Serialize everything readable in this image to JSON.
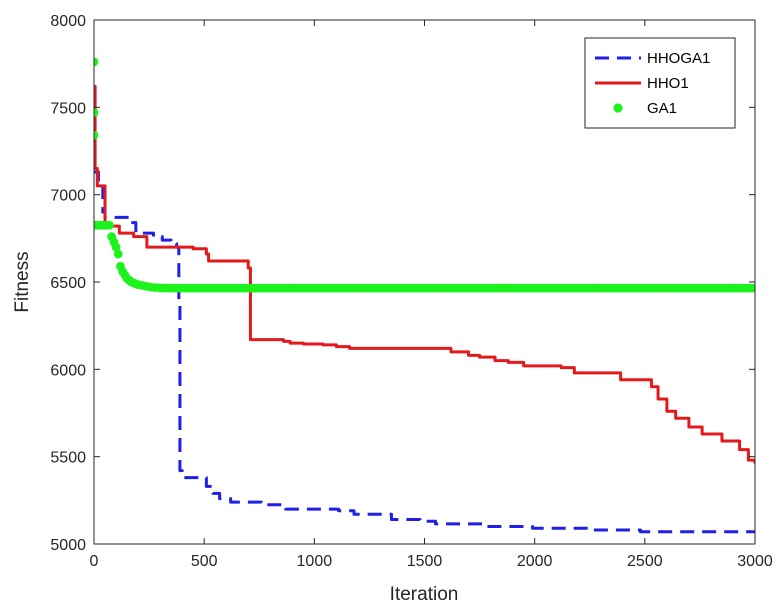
{
  "chart_data": {
    "type": "line",
    "title": "",
    "xlabel": "Iteration",
    "ylabel": "Fitness",
    "xlim": [
      0,
      3000
    ],
    "ylim": [
      5000,
      8000
    ],
    "x_ticks": [
      0,
      500,
      1000,
      1500,
      2000,
      2500,
      3000
    ],
    "y_ticks": [
      5000,
      5500,
      6000,
      6500,
      7000,
      7500,
      8000
    ],
    "grid": false,
    "legend_position": "top-right",
    "series": [
      {
        "name": "HHOGA1",
        "color": "#1f1fe6",
        "line_style": "dashed",
        "step": true,
        "points": [
          [
            0,
            7130
          ],
          [
            20,
            7060
          ],
          [
            40,
            6900
          ],
          [
            50,
            6870
          ],
          [
            170,
            6870
          ],
          [
            175,
            6840
          ],
          [
            190,
            6780
          ],
          [
            270,
            6760
          ],
          [
            310,
            6740
          ],
          [
            350,
            6720
          ],
          [
            375,
            6700
          ],
          [
            385,
            6400
          ],
          [
            390,
            5420
          ],
          [
            400,
            5380
          ],
          [
            490,
            5380
          ],
          [
            510,
            5330
          ],
          [
            540,
            5290
          ],
          [
            570,
            5260
          ],
          [
            620,
            5240
          ],
          [
            760,
            5225
          ],
          [
            870,
            5200
          ],
          [
            1110,
            5190
          ],
          [
            1180,
            5170
          ],
          [
            1350,
            5140
          ],
          [
            1480,
            5130
          ],
          [
            1550,
            5115
          ],
          [
            1770,
            5100
          ],
          [
            1990,
            5090
          ],
          [
            2250,
            5080
          ],
          [
            2480,
            5070
          ],
          [
            3000,
            5070
          ]
        ]
      },
      {
        "name": "HHO1",
        "color": "#e31a1c",
        "line_style": "solid",
        "step": true,
        "points": [
          [
            0,
            7620
          ],
          [
            5,
            7150
          ],
          [
            15,
            7050
          ],
          [
            40,
            7050
          ],
          [
            50,
            6820
          ],
          [
            110,
            6820
          ],
          [
            115,
            6780
          ],
          [
            180,
            6760
          ],
          [
            240,
            6700
          ],
          [
            400,
            6700
          ],
          [
            450,
            6690
          ],
          [
            510,
            6660
          ],
          [
            520,
            6620
          ],
          [
            700,
            6580
          ],
          [
            710,
            6170
          ],
          [
            860,
            6160
          ],
          [
            890,
            6150
          ],
          [
            950,
            6145
          ],
          [
            1040,
            6140
          ],
          [
            1100,
            6130
          ],
          [
            1160,
            6120
          ],
          [
            1580,
            6120
          ],
          [
            1620,
            6100
          ],
          [
            1700,
            6080
          ],
          [
            1750,
            6070
          ],
          [
            1820,
            6050
          ],
          [
            1880,
            6040
          ],
          [
            1950,
            6020
          ],
          [
            2120,
            6010
          ],
          [
            2180,
            5980
          ],
          [
            2370,
            5980
          ],
          [
            2390,
            5940
          ],
          [
            2480,
            5940
          ],
          [
            2530,
            5900
          ],
          [
            2560,
            5830
          ],
          [
            2600,
            5760
          ],
          [
            2640,
            5720
          ],
          [
            2700,
            5670
          ],
          [
            2760,
            5630
          ],
          [
            2850,
            5590
          ],
          [
            2930,
            5540
          ],
          [
            2970,
            5480
          ],
          [
            3000,
            5460
          ]
        ]
      },
      {
        "name": "GA1",
        "color": "#1cf21c",
        "line_style": "dots",
        "step": false,
        "points": [
          [
            0,
            7760
          ],
          [
            0,
            7470
          ],
          [
            0,
            7340
          ],
          [
            0,
            6825
          ],
          [
            10,
            6825
          ],
          [
            20,
            6825
          ],
          [
            30,
            6825
          ],
          [
            40,
            6825
          ],
          [
            50,
            6825
          ],
          [
            60,
            6825
          ],
          [
            70,
            6825
          ],
          [
            80,
            6760
          ],
          [
            90,
            6730
          ],
          [
            100,
            6700
          ],
          [
            110,
            6660
          ],
          [
            120,
            6590
          ],
          [
            130,
            6560
          ],
          [
            140,
            6540
          ],
          [
            150,
            6520
          ],
          [
            160,
            6510
          ],
          [
            170,
            6500
          ],
          [
            180,
            6495
          ],
          [
            190,
            6490
          ],
          [
            200,
            6485
          ],
          [
            220,
            6480
          ],
          [
            240,
            6475
          ],
          [
            260,
            6470
          ],
          [
            280,
            6468
          ],
          [
            300,
            6466
          ],
          [
            330,
            6465
          ],
          [
            360,
            6465
          ],
          [
            3000,
            6465
          ]
        ],
        "marker_spacing": 15
      }
    ]
  }
}
